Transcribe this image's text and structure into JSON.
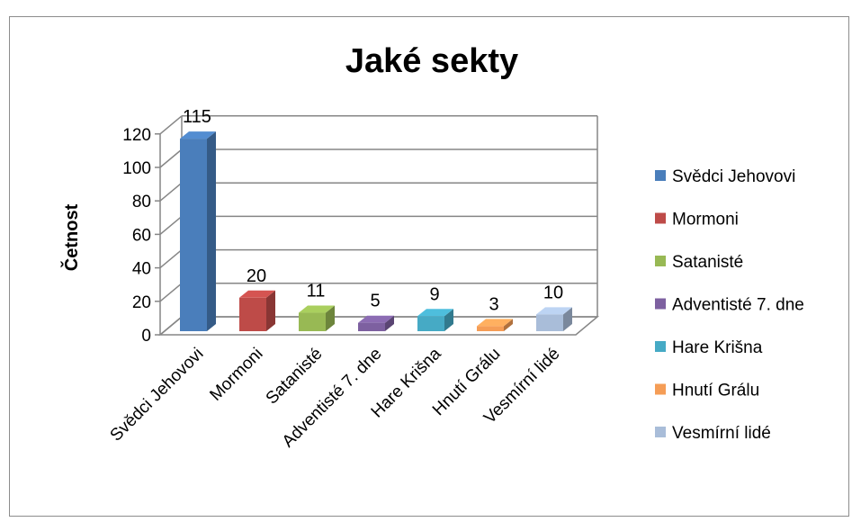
{
  "chart_data": {
    "type": "bar",
    "title": "Jaké sekty",
    "xlabel": "",
    "ylabel": "Četnost",
    "ylim": [
      0,
      120
    ],
    "yticks": [
      0,
      20,
      40,
      60,
      80,
      100,
      120
    ],
    "grid": true,
    "legend_position": "right",
    "categories": [
      "Svědci Jehovovi",
      "Mormoni",
      "Satanisté",
      "Adventisté 7. dne",
      "Hare Krišna",
      "Hnutí Grálu",
      "Vesmírní lidé"
    ],
    "values": [
      115,
      20,
      11,
      5,
      9,
      3,
      10
    ],
    "data_labels": [
      "115",
      "20",
      "11",
      "5",
      "9",
      "3",
      "10"
    ],
    "colors": [
      "#4a7ebb",
      "#be4b48",
      "#98b954",
      "#7d60a0",
      "#46aac5",
      "#f59d56",
      "#a9bdd9"
    ],
    "legend": [
      "Svědci Jehovovi",
      "Mormoni",
      "Satanisté",
      "Adventisté 7. dne",
      "Hare Krišna",
      "Hnutí Grálu",
      "Vesmírní lidé"
    ]
  }
}
